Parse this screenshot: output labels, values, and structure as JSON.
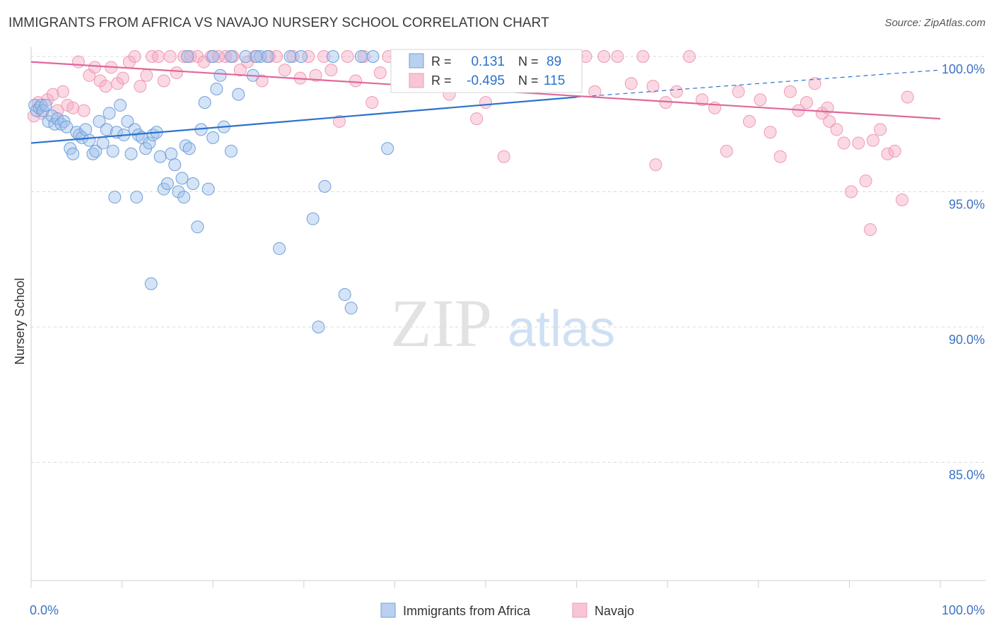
{
  "title": "IMMIGRANTS FROM AFRICA VS NAVAJO NURSERY SCHOOL CORRELATION CHART",
  "source": "Source: ZipAtlas.com",
  "watermark": {
    "zip": "ZIP",
    "atlas": "atlas"
  },
  "colors": {
    "blue": "#6f9fdc",
    "blue_line": "#2b72cc",
    "pink": "#f099b3",
    "pink_line": "#e0679a",
    "axis_text": "#3b73c4",
    "grid": "#d8d8d8"
  },
  "legend_box": {
    "rows": [
      {
        "r_label": "R =",
        "r_value": "0.131",
        "n_label": "N =",
        "n_value": "89"
      },
      {
        "r_label": "R =",
        "r_value": "-0.495",
        "n_label": "N =",
        "n_value": "115"
      }
    ]
  },
  "chart_data": {
    "type": "scatter",
    "title": "IMMIGRANTS FROM AFRICA VS NAVAJO NURSERY SCHOOL CORRELATION CHART",
    "xlabel": "",
    "ylabel": "Nursery School",
    "xlim": [
      0,
      100
    ],
    "ylim": [
      80.4,
      101.0
    ],
    "x_tick_labels": [
      "0.0%",
      "100.0%"
    ],
    "y_ticks": [
      100,
      95,
      90,
      85
    ],
    "y_tick_labels": [
      "100.0%",
      "95.0%",
      "90.0%",
      "85.0%"
    ],
    "grid": true,
    "legend_position": "bottom-center",
    "series": [
      {
        "name": "Immigrants from Africa",
        "r": 0.131,
        "n": 89,
        "trend": {
          "x0": 0,
          "y0": 96.8,
          "x1": 60,
          "y1": 98.5,
          "dash_to_x": 100,
          "dash_to_y": 99.5
        },
        "points": [
          [
            0.4,
            98.2
          ],
          [
            0.6,
            98.0
          ],
          [
            0.9,
            98.1
          ],
          [
            1.1,
            98.2
          ],
          [
            1.3,
            98.0
          ],
          [
            1.6,
            98.2
          ],
          [
            1.9,
            97.6
          ],
          [
            2.3,
            97.8
          ],
          [
            2.6,
            97.5
          ],
          [
            2.9,
            97.7
          ],
          [
            3.3,
            97.5
          ],
          [
            3.6,
            97.6
          ],
          [
            3.9,
            97.4
          ],
          [
            4.3,
            96.6
          ],
          [
            4.6,
            96.4
          ],
          [
            5.0,
            97.2
          ],
          [
            5.3,
            97.1
          ],
          [
            5.6,
            97.0
          ],
          [
            6.0,
            97.3
          ],
          [
            6.4,
            96.9
          ],
          [
            6.8,
            96.4
          ],
          [
            7.1,
            96.5
          ],
          [
            7.5,
            97.6
          ],
          [
            7.9,
            96.8
          ],
          [
            8.3,
            97.3
          ],
          [
            8.6,
            97.9
          ],
          [
            9.0,
            96.5
          ],
          [
            9.4,
            97.2
          ],
          [
            9.8,
            98.2
          ],
          [
            10.2,
            97.1
          ],
          [
            10.6,
            97.6
          ],
          [
            11.0,
            96.4
          ],
          [
            11.4,
            97.3
          ],
          [
            11.8,
            97.1
          ],
          [
            12.2,
            97.0
          ],
          [
            12.6,
            96.6
          ],
          [
            13.0,
            96.8
          ],
          [
            13.4,
            97.1
          ],
          [
            13.8,
            97.2
          ],
          [
            14.2,
            96.3
          ],
          [
            14.6,
            95.1
          ],
          [
            15.0,
            95.3
          ],
          [
            15.4,
            96.4
          ],
          [
            15.8,
            96.0
          ],
          [
            16.2,
            95.0
          ],
          [
            16.6,
            95.5
          ],
          [
            17.0,
            96.7
          ],
          [
            17.4,
            96.6
          ],
          [
            17.8,
            95.3
          ],
          [
            18.3,
            93.7
          ],
          [
            18.7,
            97.3
          ],
          [
            19.1,
            98.3
          ],
          [
            19.5,
            95.1
          ],
          [
            20.0,
            97.0
          ],
          [
            20.4,
            98.8
          ],
          [
            20.8,
            99.3
          ],
          [
            21.2,
            97.4
          ],
          [
            22.0,
            96.5
          ],
          [
            22.8,
            98.6
          ],
          [
            23.6,
            100.0
          ],
          [
            24.4,
            99.3
          ],
          [
            25.2,
            100.0
          ],
          [
            26.0,
            100.0
          ],
          [
            27.3,
            92.9
          ],
          [
            28.5,
            100.0
          ],
          [
            29.7,
            100.0
          ],
          [
            31.0,
            94.0
          ],
          [
            31.6,
            90.0
          ],
          [
            32.3,
            95.2
          ],
          [
            33.2,
            100.0
          ],
          [
            34.5,
            91.2
          ],
          [
            35.2,
            90.7
          ],
          [
            36.3,
            100.0
          ],
          [
            37.6,
            100.0
          ],
          [
            39.2,
            96.6
          ],
          [
            40.6,
            100.0
          ],
          [
            42.8,
            100.0
          ],
          [
            45.2,
            100.0
          ],
          [
            46.8,
            100.0
          ],
          [
            47.6,
            100.0
          ],
          [
            11.6,
            94.8
          ],
          [
            13.2,
            91.6
          ],
          [
            16.8,
            94.8
          ],
          [
            9.2,
            94.8
          ],
          [
            22.0,
            100.0
          ],
          [
            24.8,
            100.0
          ],
          [
            17.2,
            100.0
          ],
          [
            20.0,
            100.0
          ],
          [
            44.2,
            100.0
          ]
        ]
      },
      {
        "name": "Navajo",
        "r": -0.495,
        "n": 115,
        "trend": {
          "x0": 0,
          "y0": 99.8,
          "x1": 100,
          "y1": 97.7
        },
        "points": [
          [
            0.3,
            97.8
          ],
          [
            0.8,
            98.3
          ],
          [
            1.2,
            97.9
          ],
          [
            1.8,
            98.4
          ],
          [
            2.4,
            98.6
          ],
          [
            2.9,
            98.0
          ],
          [
            3.5,
            98.7
          ],
          [
            4.0,
            98.2
          ],
          [
            4.6,
            98.1
          ],
          [
            5.2,
            99.8
          ],
          [
            5.8,
            98.0
          ],
          [
            6.4,
            99.3
          ],
          [
            7.0,
            99.6
          ],
          [
            7.6,
            99.1
          ],
          [
            8.2,
            98.9
          ],
          [
            8.8,
            99.6
          ],
          [
            9.5,
            99.0
          ],
          [
            10.1,
            99.2
          ],
          [
            10.8,
            99.8
          ],
          [
            11.4,
            100.0
          ],
          [
            12.0,
            98.9
          ],
          [
            12.7,
            99.3
          ],
          [
            13.3,
            100.0
          ],
          [
            14.0,
            100.0
          ],
          [
            14.6,
            99.1
          ],
          [
            15.3,
            100.0
          ],
          [
            16.0,
            99.4
          ],
          [
            16.8,
            100.0
          ],
          [
            17.5,
            100.0
          ],
          [
            18.3,
            100.0
          ],
          [
            19.0,
            99.8
          ],
          [
            19.8,
            100.0
          ],
          [
            20.6,
            100.0
          ],
          [
            21.4,
            100.0
          ],
          [
            22.2,
            100.0
          ],
          [
            23.0,
            99.5
          ],
          [
            23.8,
            99.8
          ],
          [
            24.6,
            100.0
          ],
          [
            25.4,
            99.1
          ],
          [
            26.2,
            100.0
          ],
          [
            27.0,
            100.0
          ],
          [
            27.9,
            99.5
          ],
          [
            28.8,
            100.0
          ],
          [
            29.6,
            99.2
          ],
          [
            30.5,
            100.0
          ],
          [
            31.3,
            99.3
          ],
          [
            32.2,
            100.0
          ],
          [
            33.0,
            99.5
          ],
          [
            33.9,
            97.6
          ],
          [
            34.8,
            100.0
          ],
          [
            35.7,
            99.1
          ],
          [
            36.6,
            100.0
          ],
          [
            37.5,
            98.3
          ],
          [
            38.4,
            99.4
          ],
          [
            39.3,
            100.0
          ],
          [
            40.2,
            100.0
          ],
          [
            41.1,
            100.0
          ],
          [
            42.0,
            99.1
          ],
          [
            43.0,
            100.0
          ],
          [
            44.0,
            100.0
          ],
          [
            45.0,
            99.9
          ],
          [
            46.0,
            98.6
          ],
          [
            47.0,
            100.0
          ],
          [
            48.0,
            100.0
          ],
          [
            49.0,
            97.7
          ],
          [
            50.0,
            98.3
          ],
          [
            51.0,
            100.0
          ],
          [
            52.0,
            100.0
          ],
          [
            53.0,
            99.5
          ],
          [
            54.0,
            100.0
          ],
          [
            55.0,
            99.3
          ],
          [
            56.0,
            100.0
          ],
          [
            57.0,
            99.8
          ],
          [
            58.0,
            100.0
          ],
          [
            59.0,
            99.1
          ],
          [
            60.0,
            100.0
          ],
          [
            61.0,
            100.0
          ],
          [
            62.0,
            98.7
          ],
          [
            63.0,
            100.0
          ],
          [
            64.5,
            100.0
          ],
          [
            66.0,
            99.0
          ],
          [
            67.3,
            100.0
          ],
          [
            68.4,
            98.9
          ],
          [
            69.8,
            98.3
          ],
          [
            71.0,
            98.7
          ],
          [
            72.4,
            100.0
          ],
          [
            73.8,
            98.4
          ],
          [
            75.2,
            98.1
          ],
          [
            76.5,
            96.5
          ],
          [
            77.8,
            98.7
          ],
          [
            79.0,
            97.6
          ],
          [
            80.2,
            98.4
          ],
          [
            81.3,
            97.2
          ],
          [
            82.4,
            96.3
          ],
          [
            83.5,
            98.7
          ],
          [
            84.4,
            98.0
          ],
          [
            85.3,
            98.3
          ],
          [
            86.2,
            99.0
          ],
          [
            87.0,
            97.9
          ],
          [
            87.8,
            97.6
          ],
          [
            88.6,
            97.3
          ],
          [
            89.4,
            96.8
          ],
          [
            90.2,
            95.0
          ],
          [
            91.0,
            96.8
          ],
          [
            91.8,
            95.4
          ],
          [
            92.6,
            96.9
          ],
          [
            93.4,
            97.3
          ],
          [
            94.2,
            96.4
          ],
          [
            95.0,
            96.5
          ],
          [
            95.8,
            94.7
          ],
          [
            96.4,
            98.5
          ],
          [
            87.6,
            98.1
          ],
          [
            92.3,
            93.6
          ],
          [
            68.7,
            96.0
          ],
          [
            52.0,
            96.3
          ]
        ]
      }
    ]
  },
  "axis": {
    "ylabel": "Nursery School",
    "x_left": "0.0%",
    "x_right": "100.0%",
    "y_labels": [
      "100.0%",
      "95.0%",
      "90.0%",
      "85.0%"
    ]
  },
  "bottom_legend": [
    {
      "label": "Immigrants from Africa"
    },
    {
      "label": "Navajo"
    }
  ]
}
